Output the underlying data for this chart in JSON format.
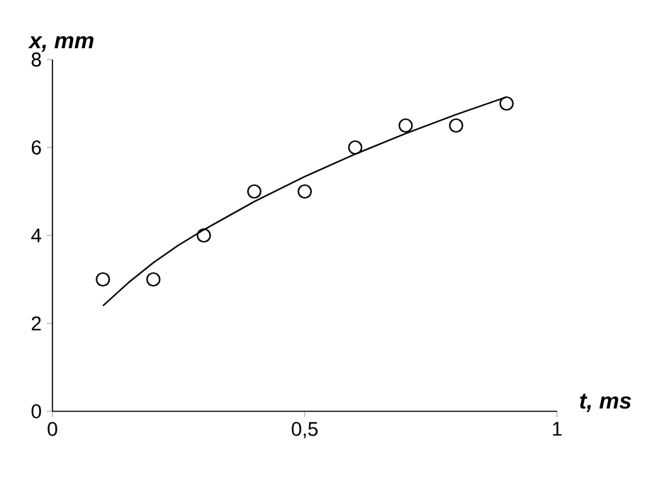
{
  "chart_data": {
    "type": "scatter",
    "xlabel": "t, ms",
    "ylabel": "x, mm",
    "xlim": [
      0,
      1
    ],
    "ylim": [
      0,
      8
    ],
    "xticks": [
      0,
      {
        "value": 0.5,
        "label": "0,5"
      },
      1
    ],
    "yticks": [
      0,
      2,
      4,
      6,
      8
    ],
    "series": [
      {
        "color": "#000000",
        "marker": "circle",
        "x": [
          0.1,
          0.2,
          0.3,
          0.4,
          0.5,
          0.6,
          0.7,
          0.8,
          0.9
        ],
        "values": [
          3,
          3,
          4,
          5,
          5,
          6,
          6.5,
          6.5,
          7
        ]
      },
      {
        "type": "line",
        "color": "#000000",
        "marker": "none",
        "line_style": "solid",
        "x": [
          0.1,
          0.15,
          0.2,
          0.25,
          0.3,
          0.4,
          0.5,
          0.6,
          0.7,
          0.8,
          0.9
        ],
        "values": [
          2.4,
          2.92,
          3.38,
          3.78,
          4.13,
          4.77,
          5.34,
          5.85,
          6.32,
          6.75,
          7.15
        ]
      }
    ]
  }
}
